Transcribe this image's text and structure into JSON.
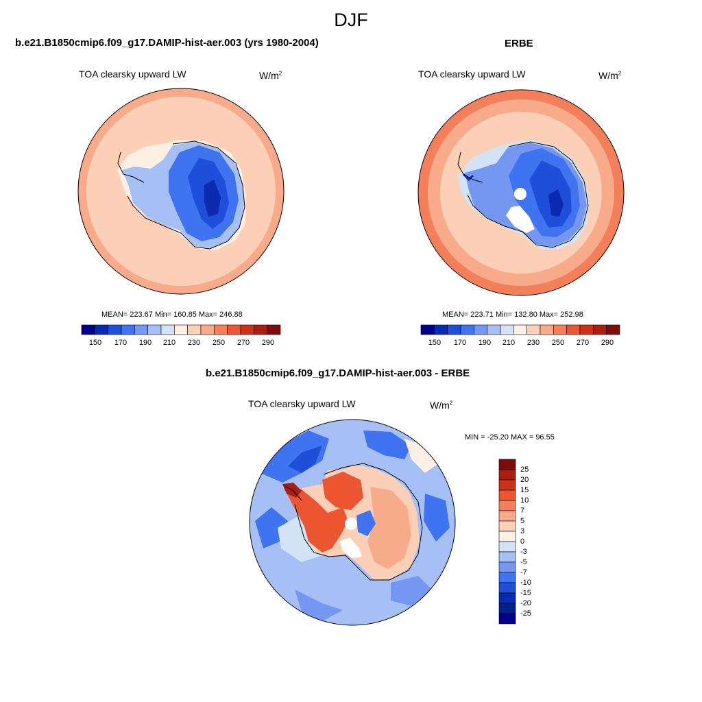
{
  "figure": {
    "season": "DJF"
  },
  "panels": {
    "model": {
      "title": "b.e21.B1850cmip6.f09_g17.DAMIP-hist-aer.003 (yrs 1980-2004)",
      "variable": "TOA clearsky upward LW",
      "units_base": "W/m",
      "units_exp": "2",
      "stats": "MEAN= 223.67  Min= 160.85  Max= 246.88"
    },
    "obs": {
      "title": "ERBE",
      "variable": "TOA clearsky upward LW",
      "units_base": "W/m",
      "units_exp": "2",
      "stats": "MEAN= 223.71  Min= 132.80  Max= 252.98"
    },
    "diff": {
      "title": "b.e21.B1850cmip6.f09_g17.DAMIP-hist-aer.003 - ERBE",
      "variable": "TOA clearsky upward LW",
      "units_base": "W/m",
      "units_exp": "2",
      "stats": "MIN = -25.20 MAX =  96.55"
    }
  },
  "colorbars": {
    "absolute": {
      "tick_labels": [
        "150",
        "170",
        "190",
        "210",
        "230",
        "250",
        "270",
        "290"
      ],
      "colors": [
        "#00008b",
        "#0a2ab0",
        "#1f4fd9",
        "#4073ef",
        "#7497f2",
        "#a6bff5",
        "#d3e3f6",
        "#fcefe3",
        "#fbd0b6",
        "#f7ab8a",
        "#f47f5b",
        "#eb5531",
        "#cd3218",
        "#a81e10",
        "#7f0c0c"
      ]
    },
    "difference": {
      "levels": [
        "25",
        "20",
        "15",
        "10",
        "7",
        "5",
        "3",
        "0",
        "-3",
        "-5",
        "-7",
        "-10",
        "-15",
        "-20",
        "-25"
      ],
      "colors": [
        "#7f0c0c",
        "#a81e10",
        "#cd3218",
        "#eb5531",
        "#f47f5b",
        "#f7ab8a",
        "#fbd0b6",
        "#fcefe3",
        "#d3e3f6",
        "#a6bff5",
        "#7497f2",
        "#4073ef",
        "#1f4fd9",
        "#0a2ab0",
        "#03208f",
        "#00008b"
      ]
    }
  }
}
